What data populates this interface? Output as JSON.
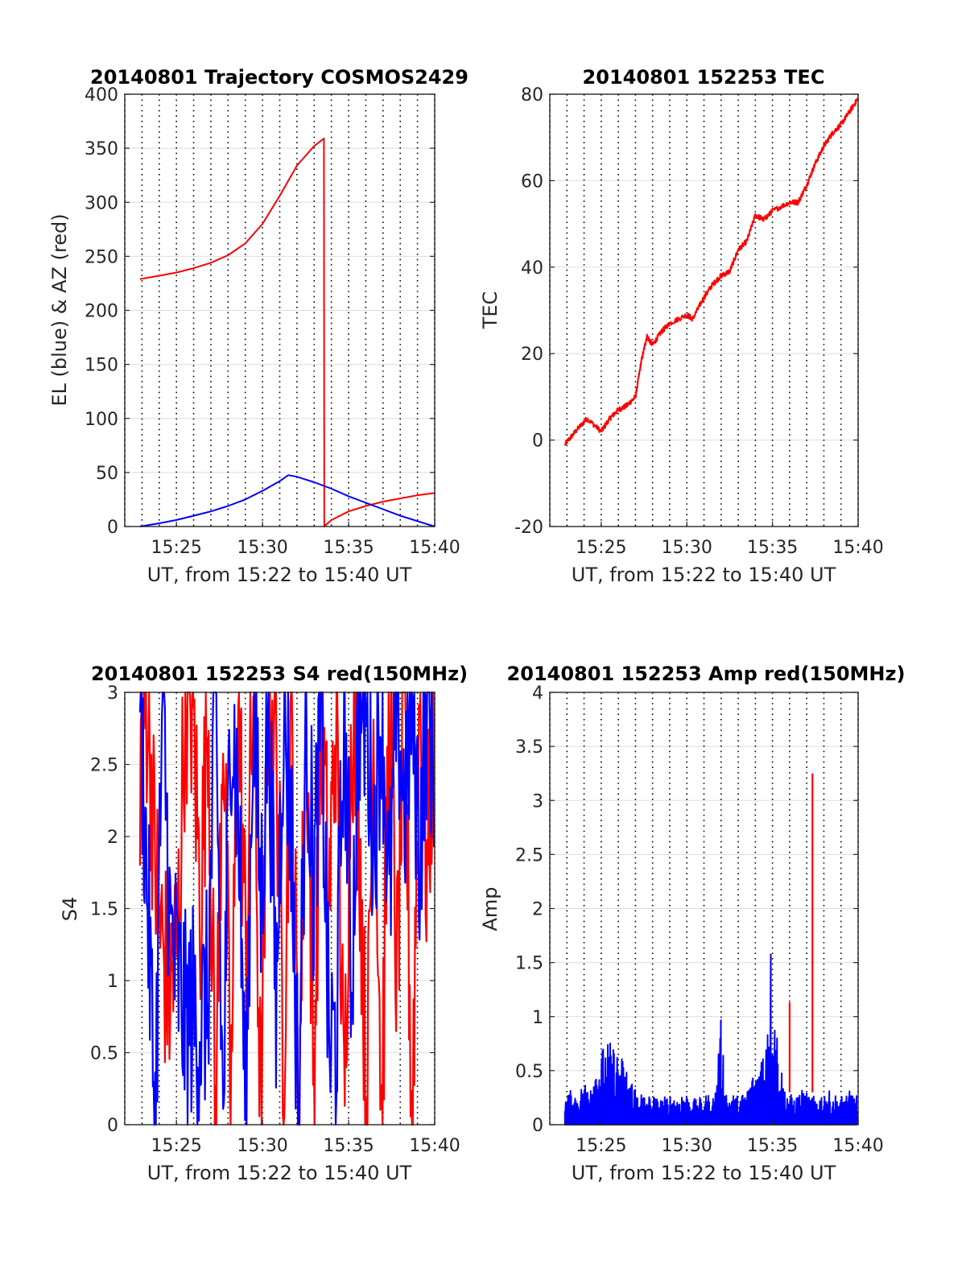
{
  "figure": {
    "background": "#ffffff",
    "red": "#ff0000",
    "blue": "#0000ff"
  },
  "chart_data": [
    {
      "type": "line",
      "title": "20140801 Trajectory COSMOS2429",
      "xlabel": "UT, from 15:22 to 15:40 UT",
      "ylabel": "EL (blue) & AZ (red)",
      "xlim": [
        "15:22",
        "15:40"
      ],
      "ylim": [
        0,
        400
      ],
      "xticks": [
        "15:25",
        "15:30",
        "15:35",
        "15:40"
      ],
      "yticks": [
        "0",
        "50",
        "100",
        "150",
        "200",
        "250",
        "300",
        "350",
        "400"
      ],
      "grid": true,
      "series": [
        {
          "color": "#ff0000",
          "x": [
            "15:22:53",
            "15:24",
            "15:25",
            "15:26",
            "15:27",
            "15:28",
            "15:29",
            "15:30",
            "15:31",
            "15:32",
            "15:33",
            "15:33:34",
            "15:33:35",
            "15:34",
            "15:35",
            "15:36",
            "15:37",
            "15:38",
            "15:39",
            "15:40"
          ],
          "values": [
            229,
            232,
            235,
            239,
            244,
            251,
            262,
            280,
            306,
            334,
            352,
            359,
            0,
            6,
            14,
            19,
            23,
            26,
            29,
            31
          ]
        },
        {
          "color": "#0000ff",
          "x": [
            "15:22:53",
            "15:24",
            "15:25",
            "15:26",
            "15:27",
            "15:28",
            "15:29",
            "15:30",
            "15:31",
            "15:31:30",
            "15:32",
            "15:33",
            "15:34",
            "15:35",
            "15:36",
            "15:37",
            "15:38",
            "15:39",
            "15:40"
          ],
          "values": [
            0,
            3,
            6,
            10,
            14,
            19,
            25,
            33,
            42,
            47.5,
            46,
            41,
            35,
            28,
            22,
            16,
            10,
            5,
            0
          ]
        }
      ]
    },
    {
      "type": "line",
      "title": "20140801 152253 TEC",
      "xlabel": "UT, from 15:22 to 15:40 UT",
      "ylabel": "TEC",
      "xlim": [
        "15:22",
        "15:40"
      ],
      "ylim": [
        -20,
        80
      ],
      "xticks": [
        "15:25",
        "15:30",
        "15:35",
        "15:40"
      ],
      "yticks": [
        "-20",
        "0",
        "20",
        "40",
        "60",
        "80"
      ],
      "grid": true,
      "series": [
        {
          "color": "#ff0000",
          "x": [
            "15:22:53",
            "15:23:30",
            "15:24:10",
            "15:25",
            "15:25:30",
            "15:26",
            "15:26:30",
            "15:27",
            "15:27:20",
            "15:27:40",
            "15:28",
            "15:28:30",
            "15:29",
            "15:30",
            "15:30:20",
            "15:31",
            "15:31:30",
            "15:32",
            "15:32:30",
            "15:33",
            "15:33:30",
            "15:34",
            "15:34:30",
            "15:35",
            "15:36",
            "15:36:30",
            "15:37",
            "15:37:30",
            "15:38",
            "15:38:30",
            "15:39",
            "15:39:30",
            "15:40"
          ],
          "values": [
            -1,
            2,
            5,
            2,
            5,
            7,
            8,
            10,
            18,
            24,
            22,
            25,
            27,
            29,
            28,
            33,
            36,
            38,
            39,
            44,
            46,
            52,
            51,
            53,
            55,
            55,
            59,
            64,
            68,
            71,
            73,
            76,
            79
          ]
        }
      ]
    },
    {
      "type": "line",
      "title": "20140801 152253 S4 red(150MHz)",
      "xlabel": "UT, from 15:22 to 15:40 UT",
      "ylabel": "S4",
      "xlim": [
        "15:22",
        "15:40"
      ],
      "ylim": [
        0,
        3
      ],
      "xticks": [
        "15:25",
        "15:30",
        "15:35",
        "15:40"
      ],
      "yticks": [
        "0",
        "0.5",
        "1",
        "1.5",
        "2",
        "2.5",
        "3"
      ],
      "grid": true,
      "series": [
        {
          "color": "#ff0000",
          "x_range": [
            "15:22:53",
            "15:40"
          ],
          "values": [
            2.5,
            3,
            1.8,
            1.2,
            0.9,
            1.3,
            3,
            2.9,
            1.5,
            3,
            0,
            3,
            0,
            3,
            1.2,
            3,
            0,
            3,
            2.8,
            0.5,
            3,
            0,
            3,
            0.3,
            3,
            1.5,
            3,
            0,
            3,
            2.2,
            0,
            3,
            0,
            3,
            1,
            3,
            0,
            3,
            1.7,
            3
          ]
        },
        {
          "color": "#0000ff",
          "x_range": [
            "15:22:53",
            "15:40"
          ],
          "values": [
            3,
            1.6,
            0,
            3,
            1.3,
            1,
            0.7,
            0.8,
            0.65,
            0.9,
            3,
            0,
            3,
            2.2,
            0,
            3,
            1.5,
            3,
            0.8,
            3,
            2.1,
            0,
            3,
            1.6,
            3,
            0.5,
            0.6,
            3,
            1,
            3,
            2.8,
            2,
            3,
            1.5,
            3,
            2.2,
            3,
            1.9,
            3,
            2.5
          ]
        }
      ]
    },
    {
      "type": "line",
      "title": "20140801 152253 Amp red(150MHz)",
      "xlabel": "UT, from 15:22 to 15:40 UT",
      "ylabel": "Amp",
      "xlim": [
        "15:22",
        "15:40"
      ],
      "ylim": [
        0,
        4
      ],
      "xticks": [
        "15:25",
        "15:30",
        "15:35",
        "15:40"
      ],
      "yticks": [
        "0",
        "0.5",
        "1",
        "1.5",
        "2",
        "2.5",
        "3",
        "3.5",
        "4"
      ],
      "grid": true,
      "series": [
        {
          "color": "#ff0000",
          "x": [
            "15:36:00",
            "15:37:20"
          ],
          "values": [
            1.13,
            3.25
          ]
        },
        {
          "color": "#0000ff",
          "x_range": [
            "15:22:53",
            "15:40"
          ],
          "values": [
            0.2,
            0.25,
            0.22,
            0.3,
            0.35,
            0.45,
            0.55,
            0.6,
            0.55,
            0.5,
            0.4,
            0.3,
            0.25,
            0.2,
            0.22,
            0.18,
            0.2,
            0.22,
            0.2,
            0.25,
            0.2,
            0.18,
            0.2,
            0.22,
            0.2,
            0.75,
            0.2,
            0.22,
            0.2,
            0.25,
            0.35,
            0.45,
            0.6,
            1.3,
            0.7,
            0.3,
            0.22,
            0.2,
            0.25,
            0.22,
            0.2,
            0.22,
            0.25,
            0.22,
            0.2,
            0.22,
            0.25,
            0.2
          ]
        }
      ]
    }
  ]
}
